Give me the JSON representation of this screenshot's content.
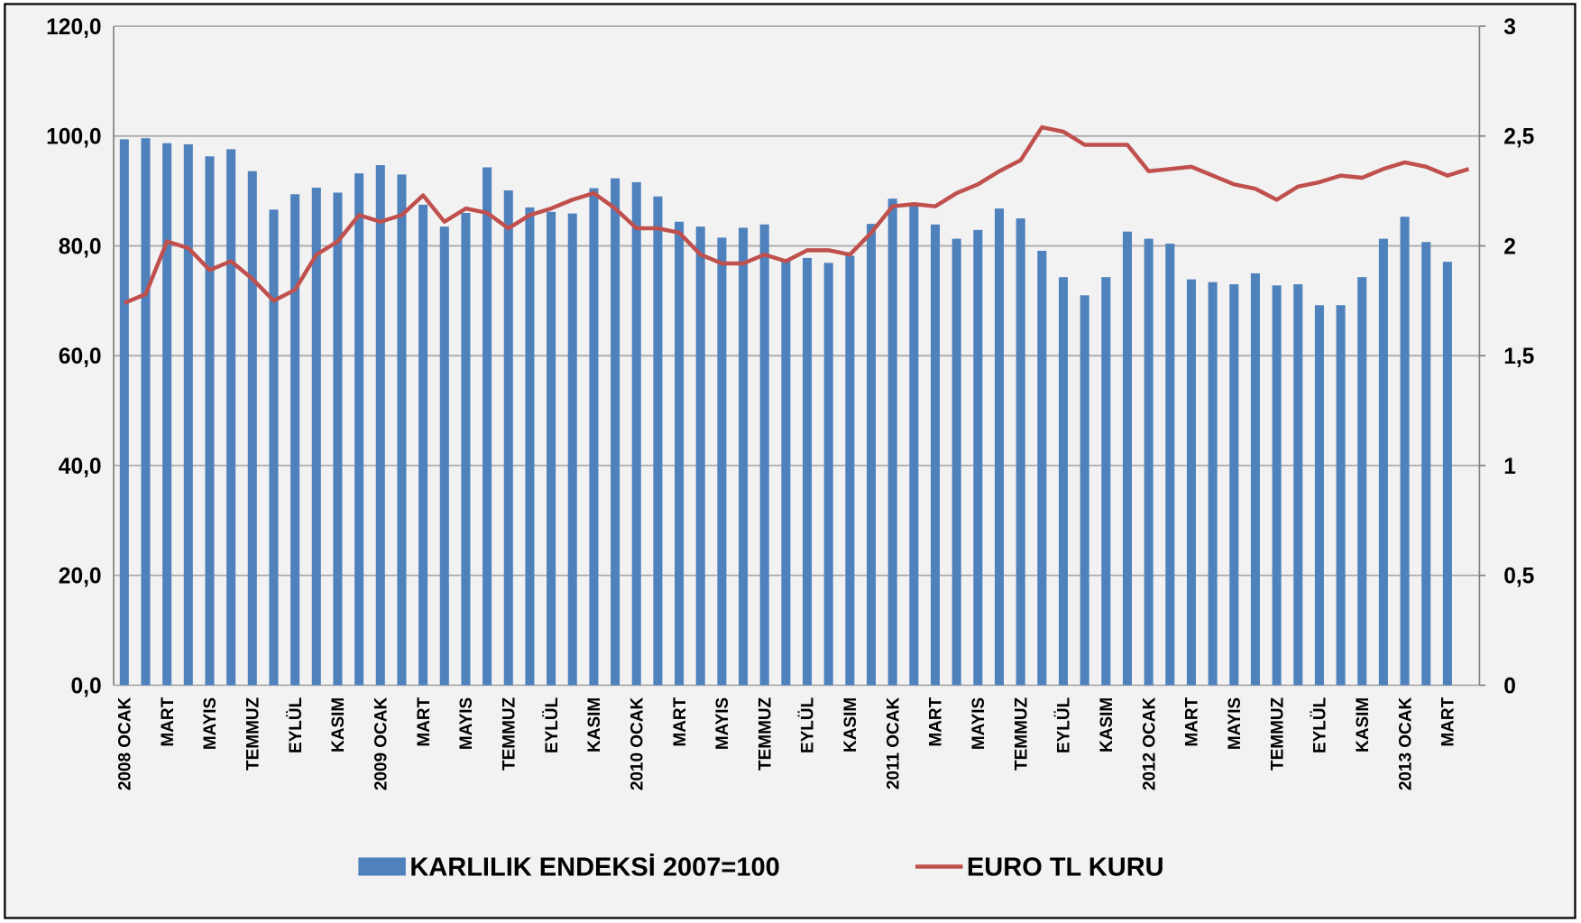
{
  "chart_data": {
    "type": "bar-line",
    "categories": [
      "2008 OCAK",
      null,
      "MART",
      null,
      "MAYIS",
      null,
      "TEMMUZ",
      null,
      "EYLÜL",
      null,
      "KASIM",
      null,
      "2009 OCAK",
      null,
      "MART",
      null,
      "MAYIS",
      null,
      "TEMMUZ",
      null,
      "EYLÜL",
      null,
      "KASIM",
      null,
      "2010 OCAK",
      null,
      "MART",
      null,
      "MAYIS",
      null,
      "TEMMUZ",
      null,
      "EYLÜL",
      null,
      "KASIM",
      null,
      "2011 OCAK",
      null,
      "MART",
      null,
      "MAYIS",
      null,
      "TEMMUZ",
      null,
      "EYLÜL",
      null,
      "KASIM",
      null,
      "2012 OCAK",
      null,
      "MART",
      null,
      "MAYIS",
      null,
      "TEMMUZ",
      null,
      "EYLÜL",
      null,
      "KASIM",
      null,
      "2013 OCAK",
      null,
      "MART",
      null
    ],
    "series": [
      {
        "name": "KARLILIK ENDEKSİ 2007=100",
        "type": "bar",
        "color": "#4f81bd",
        "axis": "y",
        "values": [
          99.4,
          99.6,
          98.7,
          98.5,
          96.3,
          97.6,
          93.6,
          86.6,
          89.4,
          90.6,
          89.7,
          93.2,
          94.7,
          93.0,
          87.5,
          83.5,
          86.0,
          94.3,
          90.1,
          87.0,
          86.2,
          85.9,
          90.5,
          92.3,
          91.6,
          89.0,
          84.4,
          83.5,
          81.5,
          83.3,
          83.9,
          77.6,
          77.8,
          76.9,
          78.2,
          84.0,
          88.6,
          87.5,
          83.9,
          81.3,
          82.9,
          86.8,
          85.0,
          79.1,
          74.3,
          71.0,
          74.3,
          82.6,
          81.3,
          80.4,
          73.9,
          73.4,
          73.0,
          75.0,
          72.8,
          73.0,
          69.2,
          69.2,
          74.3,
          81.3,
          85.3,
          80.7,
          77.1,
          null
        ]
      },
      {
        "name": "EURO TL KURU",
        "type": "line",
        "color": "#c0504d",
        "axis": "y2",
        "values": [
          1.74,
          1.78,
          2.02,
          1.99,
          1.89,
          1.93,
          1.85,
          1.75,
          1.8,
          1.96,
          2.02,
          2.14,
          2.11,
          2.14,
          2.23,
          2.11,
          2.17,
          2.15,
          2.08,
          2.14,
          2.17,
          2.21,
          2.24,
          2.17,
          2.08,
          2.08,
          2.06,
          1.96,
          1.92,
          1.92,
          1.96,
          1.93,
          1.98,
          1.98,
          1.96,
          2.06,
          2.18,
          2.19,
          2.18,
          2.24,
          2.28,
          2.34,
          2.39,
          2.54,
          2.52,
          2.46,
          2.46,
          2.46,
          2.34,
          2.35,
          2.36,
          2.32,
          2.28,
          2.26,
          2.21,
          2.27,
          2.29,
          2.32,
          2.31,
          2.35,
          2.38,
          2.36,
          2.32,
          2.35
        ]
      }
    ],
    "ylim": [
      0,
      120
    ],
    "yticks": [
      {
        "value": 0,
        "label": "0,0"
      },
      {
        "value": 20,
        "label": "20,0"
      },
      {
        "value": 40,
        "label": "40,0"
      },
      {
        "value": 60,
        "label": "60,0"
      },
      {
        "value": 80,
        "label": "80,0"
      },
      {
        "value": 100,
        "label": "100,0"
      },
      {
        "value": 120,
        "label": "120,0"
      }
    ],
    "y2lim": [
      0,
      3
    ],
    "y2ticks": [
      0,
      {
        "value": 0.5,
        "label": "0,5"
      },
      1,
      {
        "value": 1.5,
        "label": "1,5"
      },
      2,
      {
        "value": 2.5,
        "label": "2,5"
      },
      3
    ],
    "grid": true,
    "legend": "bottom"
  }
}
